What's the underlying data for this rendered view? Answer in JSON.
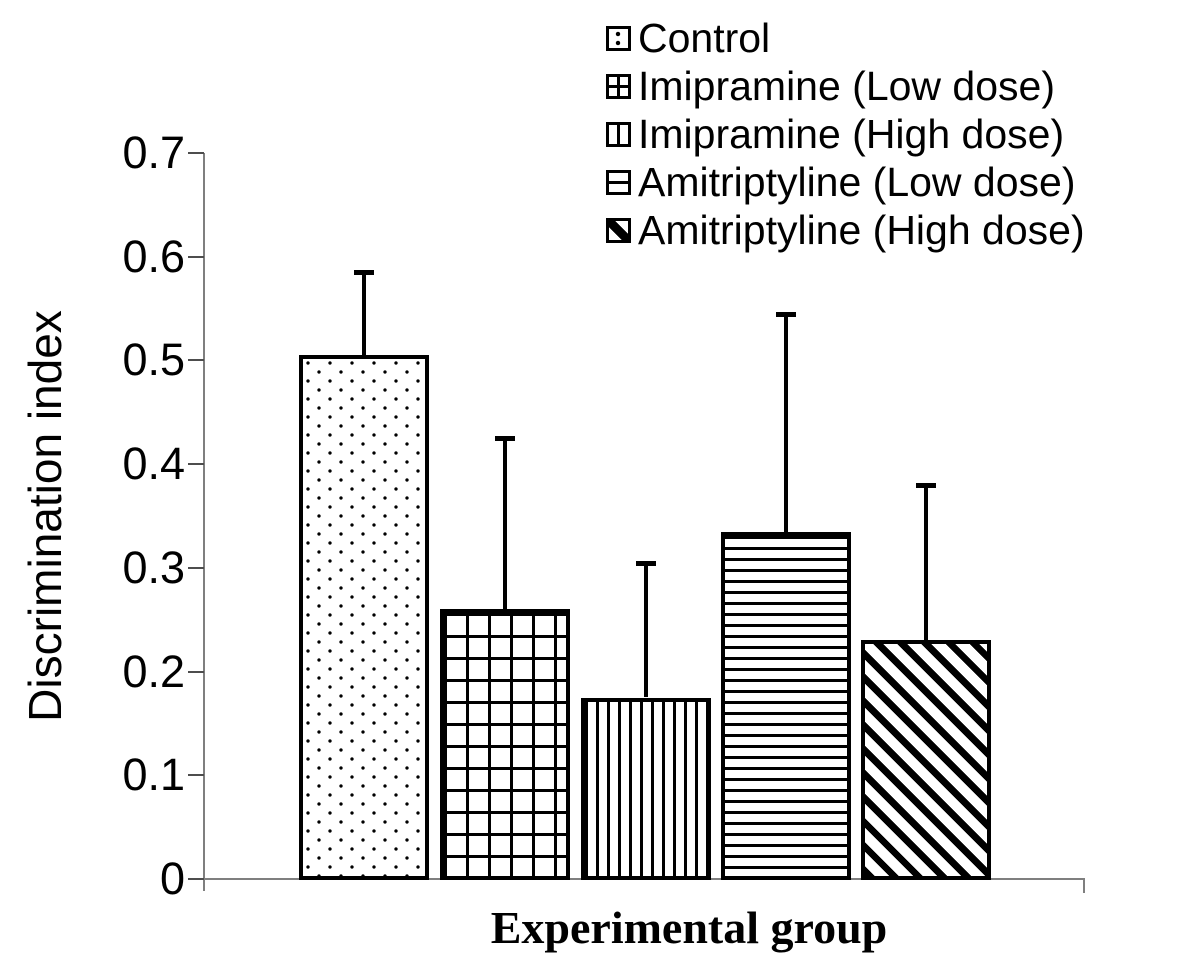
{
  "chart_data": {
    "type": "bar",
    "title": "",
    "xlabel": "Experimental group",
    "ylabel": "Discrimination index",
    "ylim": [
      0,
      0.7
    ],
    "ytick_values": [
      0,
      0.1,
      0.2,
      0.3,
      0.4,
      0.5,
      0.6,
      0.7
    ],
    "ytick_labels": [
      "0",
      "0.1",
      "0.2",
      "0.3",
      "0.4",
      "0.5",
      "0.6",
      "0.7"
    ],
    "grid": false,
    "legend_position": "top-right",
    "categories": [
      "Control",
      "Imipramine (Low dose)",
      "Imipramine (High dose)",
      "Amitriptyline (Low dose)",
      "Amitriptyline (High dose)"
    ],
    "series": [
      {
        "name": "Control",
        "pattern": "dots",
        "value": 0.505,
        "error_top": 0.585
      },
      {
        "name": "Imipramine (Low dose)",
        "pattern": "grid",
        "value": 0.26,
        "error_top": 0.425
      },
      {
        "name": "Imipramine (High dose)",
        "pattern": "vstripes",
        "value": 0.175,
        "error_top": 0.305
      },
      {
        "name": "Amitriptyline (Low dose)",
        "pattern": "hstripes",
        "value": 0.335,
        "error_top": 0.545
      },
      {
        "name": "Amitriptyline (High dose)",
        "pattern": "diag",
        "value": 0.23,
        "error_top": 0.38
      }
    ],
    "colors": {
      "bar_fill": "#ffffff",
      "bar_border": "#000000",
      "axis": "#7f7f7f",
      "tick": "#4d4d4d",
      "text": "#000000"
    }
  }
}
